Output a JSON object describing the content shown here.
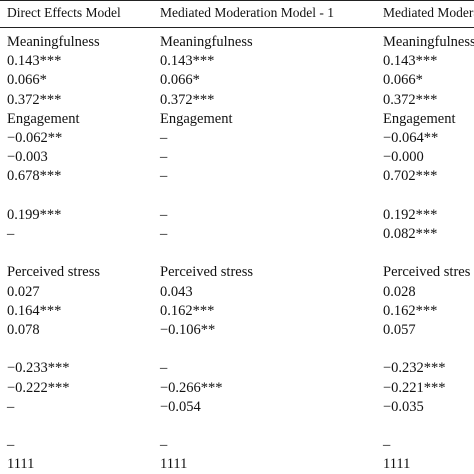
{
  "table": {
    "header": [
      "Direct Effects Model",
      "Mediated Moderation Model - 1",
      "Mediated Modera"
    ],
    "rows": [
      [
        "Meaningfulness",
        "Meaningfulness",
        "Meaningfulness"
      ],
      [
        "0.143***",
        "0.143***",
        "0.143***"
      ],
      [
        "0.066*",
        "0.066*",
        "0.066*"
      ],
      [
        "0.372***",
        "0.372***",
        "0.372***"
      ],
      [
        "Engagement",
        "Engagement",
        "Engagement"
      ],
      [
        "−0.062**",
        "–",
        "−0.064**"
      ],
      [
        "−0.003",
        "–",
        "−0.000"
      ],
      [
        "0.678***",
        "–",
        "0.702***"
      ],
      null,
      [
        "0.199***",
        "–",
        "0.192***"
      ],
      [
        "–",
        "–",
        "0.082***"
      ],
      null,
      [
        "Perceived stress",
        "Perceived stress",
        "Perceived stres"
      ],
      [
        "0.027",
        "0.043",
        "0.028"
      ],
      [
        "0.164***",
        "0.162***",
        "0.162***"
      ],
      [
        "0.078",
        "−0.106**",
        "0.057"
      ],
      null,
      [
        "−0.233***",
        "–",
        "−0.232***"
      ],
      [
        "−0.222***",
        "−0.266***",
        "−0.221***"
      ],
      [
        "–",
        "−0.054",
        "−0.035"
      ],
      null,
      [
        "–",
        "–",
        "–"
      ],
      [
        "1111",
        "1111",
        "1111"
      ]
    ]
  }
}
